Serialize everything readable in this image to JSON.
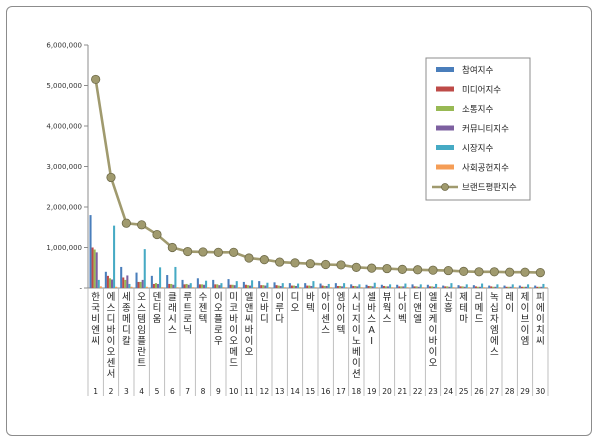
{
  "chart_data": {
    "type": "bar",
    "title": "",
    "xlabel": "",
    "ylabel": "",
    "ylim": [
      0,
      6000000
    ],
    "yticks": [
      "-",
      "1,000,000",
      "2,000,000",
      "3,000,000",
      "4,000,000",
      "5,000,000",
      "6,000,000"
    ],
    "grid": false,
    "legend_position": "top-right",
    "categories": [
      "한국비엔씨",
      "에스디바이오센서",
      "세종메디칼",
      "오스템임플란트",
      "덴티움",
      "클래시스",
      "루트로닉",
      "수젠텍",
      "이오플로우",
      "미코바이오메드",
      "엘앤씨바이오",
      "인바디",
      "이루다",
      "디오",
      "바텍",
      "아이센스",
      "엠아이텍",
      "시너지이노베이션",
      "셀바스AI",
      "뷰웍스",
      "나이벡",
      "티앤엘",
      "엘엔케이바이오",
      "신흥",
      "제테마",
      "리메드",
      "녹십자엠에스",
      "레이",
      "제이브이엠",
      "피에이치씨"
    ],
    "ranks": [
      "1",
      "2",
      "3",
      "4",
      "5",
      "6",
      "7",
      "8",
      "9",
      "10",
      "11",
      "12",
      "13",
      "14",
      "15",
      "16",
      "17",
      "18",
      "19",
      "20",
      "21",
      "22",
      "23",
      "24",
      "25",
      "26",
      "27",
      "28",
      "29",
      "30"
    ],
    "series": [
      {
        "name": "참여지수",
        "color": "#4a7ebb",
        "kind": "bar",
        "values": [
          1800000,
          400000,
          520000,
          380000,
          300000,
          320000,
          200000,
          240000,
          200000,
          220000,
          150000,
          170000,
          140000,
          120000,
          120000,
          110000,
          120000,
          90000,
          80000,
          80000,
          80000,
          90000,
          80000,
          60000,
          70000,
          70000,
          60000,
          60000,
          60000,
          60000
        ]
      },
      {
        "name": "미디어지수",
        "color": "#be4b48",
        "kind": "bar",
        "values": [
          1000000,
          300000,
          260000,
          150000,
          100000,
          100000,
          90000,
          90000,
          90000,
          80000,
          80000,
          70000,
          70000,
          60000,
          60000,
          60000,
          50000,
          50000,
          50000,
          50000,
          40000,
          40000,
          40000,
          40000,
          40000,
          40000,
          40000,
          30000,
          30000,
          30000
        ]
      },
      {
        "name": "소통지수",
        "color": "#98b954",
        "kind": "bar",
        "values": [
          950000,
          240000,
          200000,
          150000,
          120000,
          100000,
          100000,
          90000,
          90000,
          80000,
          70000,
          70000,
          60000,
          60000,
          60000,
          50000,
          50000,
          50000,
          50000,
          40000,
          40000,
          40000,
          40000,
          40000,
          40000,
          30000,
          30000,
          30000,
          30000,
          30000
        ]
      },
      {
        "name": "커뮤니티지수",
        "color": "#7d60a0",
        "kind": "bar",
        "values": [
          880000,
          210000,
          310000,
          200000,
          100000,
          80000,
          80000,
          80000,
          70000,
          70000,
          60000,
          60000,
          50000,
          50000,
          50000,
          50000,
          40000,
          40000,
          40000,
          40000,
          40000,
          30000,
          30000,
          30000,
          30000,
          30000,
          30000,
          30000,
          30000,
          30000
        ]
      },
      {
        "name": "시장지수",
        "color": "#46aac4",
        "kind": "bar",
        "values": [
          200000,
          1540000,
          100000,
          960000,
          510000,
          520000,
          120000,
          180000,
          120000,
          170000,
          190000,
          130000,
          120000,
          110000,
          170000,
          100000,
          120000,
          90000,
          130000,
          90000,
          110000,
          90000,
          100000,
          120000,
          90000,
          110000,
          90000,
          90000,
          90000,
          100000
        ]
      },
      {
        "name": "사회공헌지수",
        "color": "#f59d56",
        "kind": "bar",
        "values": [
          40000,
          30000,
          30000,
          30000,
          20000,
          20000,
          20000,
          20000,
          20000,
          20000,
          20000,
          20000,
          20000,
          20000,
          20000,
          20000,
          20000,
          20000,
          20000,
          20000,
          20000,
          20000,
          20000,
          20000,
          20000,
          20000,
          20000,
          20000,
          20000,
          20000
        ]
      },
      {
        "name": "브랜드평판지수",
        "color": "#a09a6e",
        "kind": "line",
        "values": [
          5150000,
          2730000,
          1600000,
          1560000,
          1320000,
          1000000,
          900000,
          890000,
          880000,
          880000,
          740000,
          700000,
          640000,
          620000,
          600000,
          580000,
          570000,
          510000,
          490000,
          480000,
          460000,
          450000,
          440000,
          430000,
          410000,
          400000,
          400000,
          390000,
          390000,
          380000
        ]
      }
    ]
  }
}
